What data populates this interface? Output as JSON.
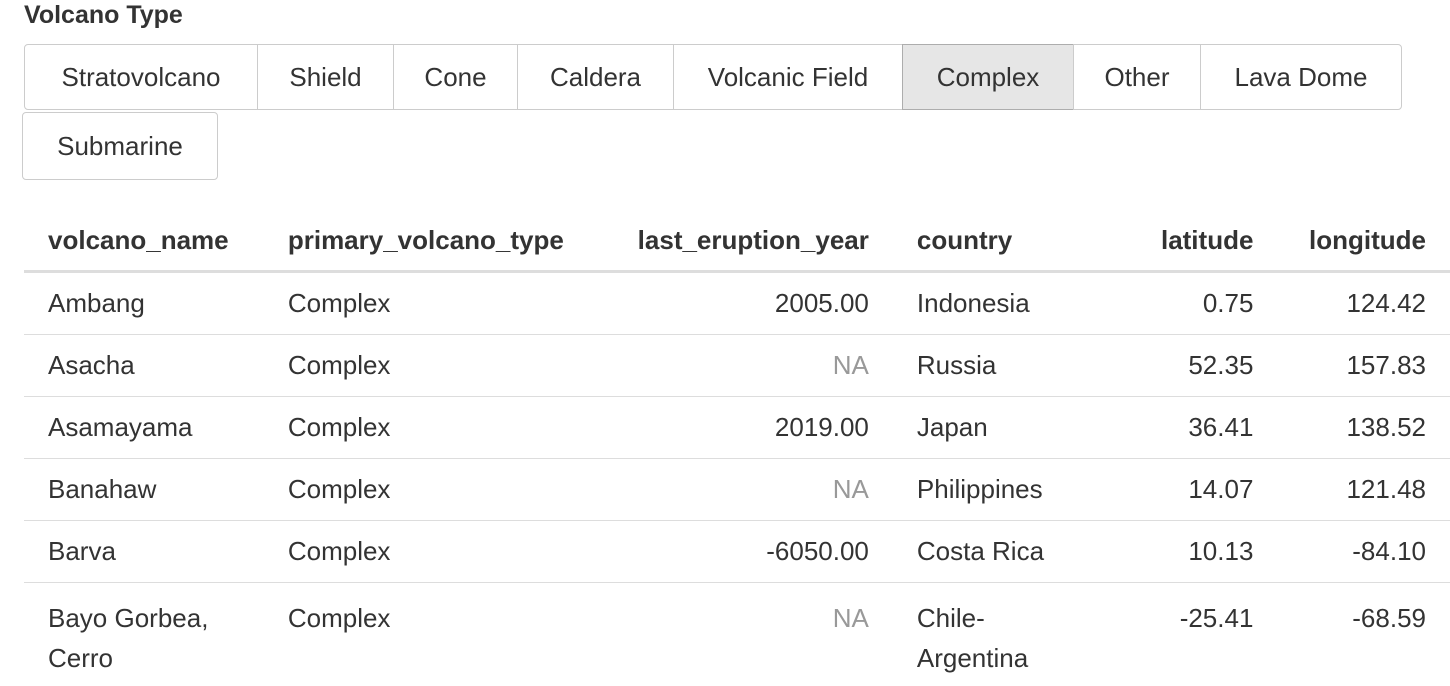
{
  "filter": {
    "label": "Volcano Type",
    "options": [
      {
        "label": "Stratovolcano",
        "active": false
      },
      {
        "label": "Shield",
        "active": false
      },
      {
        "label": "Cone",
        "active": false
      },
      {
        "label": "Caldera",
        "active": false
      },
      {
        "label": "Volcanic Field",
        "active": false
      },
      {
        "label": "Complex",
        "active": true
      },
      {
        "label": "Other",
        "active": false
      },
      {
        "label": "Lava Dome",
        "active": false
      },
      {
        "label": "Submarine",
        "active": false
      }
    ]
  },
  "table": {
    "columns": [
      "volcano_name",
      "primary_volcano_type",
      "last_eruption_year",
      "country",
      "latitude",
      "longitude"
    ],
    "rows": [
      [
        "Ambang",
        "Complex",
        "2005.00",
        "Indonesia",
        "0.75",
        "124.42"
      ],
      [
        "Asacha",
        "Complex",
        "NA",
        "Russia",
        "52.35",
        "157.83"
      ],
      [
        "Asamayama",
        "Complex",
        "2019.00",
        "Japan",
        "36.41",
        "138.52"
      ],
      [
        "Banahaw",
        "Complex",
        "NA",
        "Philippines",
        "14.07",
        "121.48"
      ],
      [
        "Barva",
        "Complex",
        "-6050.00",
        "Costa Rica",
        "10.13",
        "-84.10"
      ],
      [
        "Bayo Gorbea, Cerro",
        "Complex",
        "NA",
        "Chile-Argentina",
        "-25.41",
        "-68.59"
      ]
    ]
  },
  "colors": {
    "active_bg": "#e6e6e6",
    "border": "#cccccc",
    "na_text": "#999999",
    "text": "#333333"
  }
}
